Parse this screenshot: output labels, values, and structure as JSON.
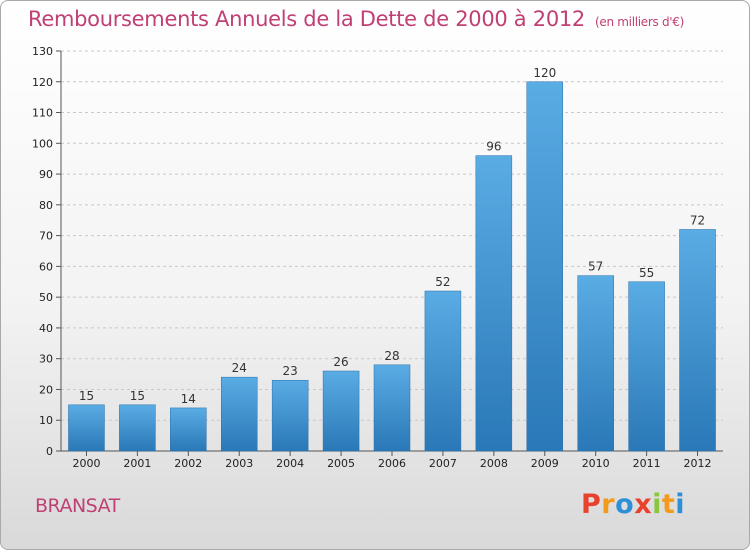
{
  "title": "Remboursements Annuels de la Dette de 2000 à 2012",
  "unit_note": "(en milliers d'€)",
  "town": "BRANSAT",
  "logo": {
    "text": "Proxiti",
    "colors": [
      "#e8412c",
      "#f39a1b",
      "#2f8fd6",
      "#e8412c",
      "#8cc63f",
      "#f39a1b",
      "#2f8fd6"
    ]
  },
  "colors": {
    "title": "#c03f74",
    "bar_light": "#5aace4",
    "bar_dark": "#2a78b7"
  },
  "chart_data": {
    "type": "bar",
    "categories": [
      "2000",
      "2001",
      "2002",
      "2003",
      "2004",
      "2005",
      "2006",
      "2007",
      "2008",
      "2009",
      "2010",
      "2011",
      "2012"
    ],
    "values": [
      15,
      15,
      14,
      24,
      23,
      26,
      28,
      52,
      96,
      120,
      57,
      55,
      72
    ],
    "ylim": [
      0,
      130
    ],
    "yticks": [
      0,
      10,
      20,
      30,
      40,
      50,
      60,
      70,
      80,
      90,
      100,
      110,
      120,
      130
    ],
    "grid": "horizontal dashed",
    "legend": "none"
  }
}
